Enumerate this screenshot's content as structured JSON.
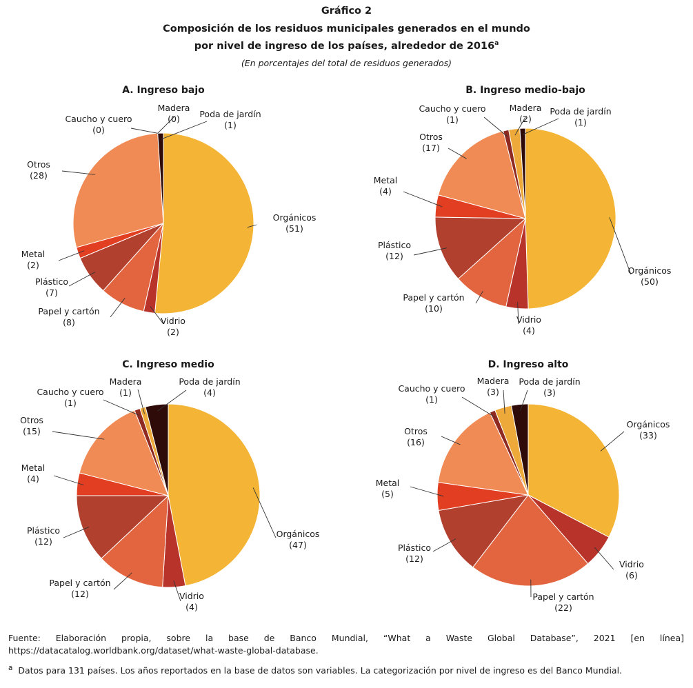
{
  "header": {
    "title": "Gráfico 2",
    "subtitle_line1": "Composición de los residuos municipales generados en el mundo",
    "subtitle_line2": "por nivel de ingreso de los países, alrededor de 2016",
    "subtitle_mark": "a",
    "unit_note": "(En porcentajes del total de residuos generados)"
  },
  "colors": {
    "Orgánicos": "#F4B536",
    "Vidrio": "#B8342B",
    "Papel y cartón": "#E3653F",
    "Plástico": "#B2402F",
    "Metal": "#E23F22",
    "Otros": "#F18B55",
    "Caucho y cuero": "#8E2A22",
    "Madera": "#EDAA3A",
    "Poda de jardín": "#2E0A09"
  },
  "chart_data": [
    {
      "type": "pie",
      "title": "A. Ingreso bajo",
      "slices": [
        {
          "label": "Orgánicos",
          "value": 51
        },
        {
          "label": "Vidrio",
          "value": 2
        },
        {
          "label": "Papel y cartón",
          "value": 8
        },
        {
          "label": "Plástico",
          "value": 7
        },
        {
          "label": "Metal",
          "value": 2
        },
        {
          "label": "Otros",
          "value": 28
        },
        {
          "label": "Caucho y cuero",
          "value": 0
        },
        {
          "label": "Madera",
          "value": 0
        },
        {
          "label": "Poda de jardín",
          "value": 1
        }
      ]
    },
    {
      "type": "pie",
      "title": "B. Ingreso medio-bajo",
      "slices": [
        {
          "label": "Orgánicos",
          "value": 50
        },
        {
          "label": "Vidrio",
          "value": 4
        },
        {
          "label": "Papel y cartón",
          "value": 10
        },
        {
          "label": "Plástico",
          "value": 12
        },
        {
          "label": "Metal",
          "value": 4
        },
        {
          "label": "Otros",
          "value": 17
        },
        {
          "label": "Caucho y cuero",
          "value": 1
        },
        {
          "label": "Madera",
          "value": 2
        },
        {
          "label": "Poda de jardín",
          "value": 1
        }
      ]
    },
    {
      "type": "pie",
      "title": "C. Ingreso medio",
      "slices": [
        {
          "label": "Orgánicos",
          "value": 47
        },
        {
          "label": "Vidrio",
          "value": 4
        },
        {
          "label": "Papel y cartón",
          "value": 12
        },
        {
          "label": "Plástico",
          "value": 12
        },
        {
          "label": "Metal",
          "value": 4
        },
        {
          "label": "Otros",
          "value": 15
        },
        {
          "label": "Caucho y cuero",
          "value": 1
        },
        {
          "label": "Madera",
          "value": 1
        },
        {
          "label": "Poda de jardín",
          "value": 4
        }
      ]
    },
    {
      "type": "pie",
      "title": "D. Ingreso alto",
      "slices": [
        {
          "label": "Orgánicos",
          "value": 33
        },
        {
          "label": "Vidrio",
          "value": 6
        },
        {
          "label": "Papel y cartón",
          "value": 22
        },
        {
          "label": "Plástico",
          "value": 12
        },
        {
          "label": "Metal",
          "value": 5
        },
        {
          "label": "Otros",
          "value": 16
        },
        {
          "label": "Caucho y cuero",
          "value": 1
        },
        {
          "label": "Madera",
          "value": 3
        },
        {
          "label": "Poda de jardín",
          "value": 3
        }
      ]
    }
  ],
  "footer": {
    "source": "Fuente: Elaboración propia, sobre la base de Banco Mundial, “What a Waste Global Database”, 2021 [en línea] https://datacatalog.worldbank.org/dataset/what-waste-global-database.",
    "note_mark": "a",
    "note": "Datos para 131 países. Los años reportados en la base de datos son variables. La categorización por nivel de ingreso es del Banco Mundial."
  }
}
